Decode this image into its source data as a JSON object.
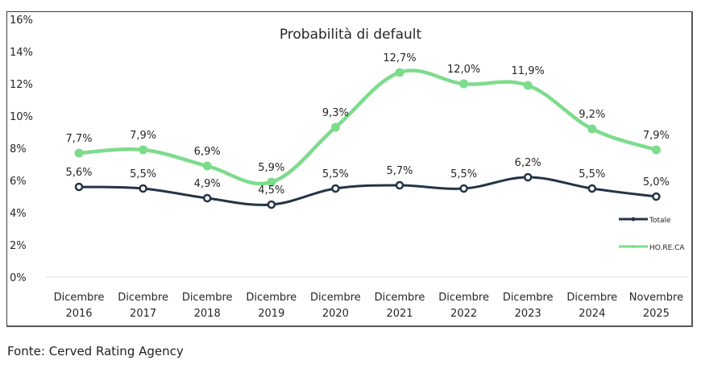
{
  "chart_data": {
    "type": "line",
    "title": "Probabilità di default",
    "xlabel": "",
    "ylabel": "",
    "categories": [
      [
        "Dicembre",
        "2016"
      ],
      [
        "Dicembre",
        "2017"
      ],
      [
        "Dicembre",
        "2018"
      ],
      [
        "Dicembre",
        "2019"
      ],
      [
        "Dicembre",
        "2020"
      ],
      [
        "Dicembre",
        "2021"
      ],
      [
        "Dicembre",
        "2022"
      ],
      [
        "Dicembre",
        "2023"
      ],
      [
        "Dicembre",
        "2024"
      ],
      [
        "Novembre",
        "2025"
      ]
    ],
    "ylim": [
      0,
      16
    ],
    "yticks": [
      "0%",
      "2%",
      "4%",
      "6%",
      "8%",
      "10%",
      "12%",
      "14%",
      "16%"
    ],
    "ytick_values": [
      0,
      2,
      4,
      6,
      8,
      10,
      12,
      14,
      16
    ],
    "grid": false,
    "legend_position": "right",
    "series": [
      {
        "name": "Totale",
        "color": "#243447",
        "values": [
          5.6,
          5.5,
          4.9,
          4.5,
          5.5,
          5.7,
          5.5,
          6.2,
          5.5,
          5.0
        ],
        "labels": [
          "5,6%",
          "5,5%",
          "4,9%",
          "4,5%",
          "5,5%",
          "5,7%",
          "5,5%",
          "6,2%",
          "5,5%",
          "5,0%"
        ]
      },
      {
        "name": "HO.RE.CA",
        "color": "#7ddc8c",
        "values": [
          7.7,
          7.9,
          6.9,
          5.9,
          9.3,
          12.7,
          12.0,
          11.9,
          9.2,
          7.9
        ],
        "labels": [
          "7,7%",
          "7,9%",
          "6,9%",
          "5,9%",
          "9,3%",
          "12,7%",
          "12,0%",
          "11,9%",
          "9,2%",
          "7,9%"
        ]
      }
    ]
  },
  "footer": {
    "source": "Fonte: Cerved Rating Agency"
  }
}
